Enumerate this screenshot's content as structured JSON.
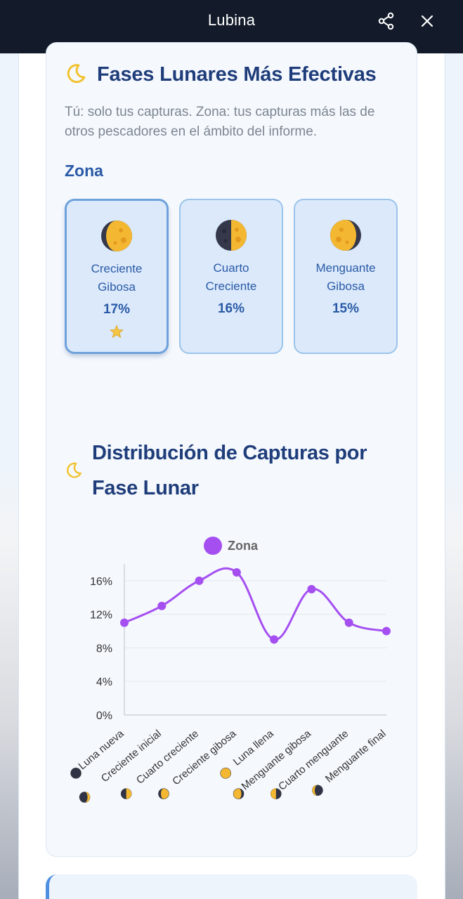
{
  "app": {
    "title": "Lubina"
  },
  "section_phases": {
    "title": "Fases Lunares Más Efectivas",
    "description": "Tú: solo tus capturas. Zona: tus capturas más las de otros pescadores en el ámbito del informe.",
    "scope_title": "Zona",
    "cards": [
      {
        "name": "Creciente Gibosa",
        "percent": "17%",
        "best": true,
        "moon": "waxing-gibbous"
      },
      {
        "name": "Cuarto Creciente",
        "percent": "16%",
        "best": false,
        "moon": "first-quarter"
      },
      {
        "name": "Menguante Gibosa",
        "percent": "15%",
        "best": false,
        "moon": "waning-gibbous"
      }
    ]
  },
  "section_chart": {
    "title": "Distribución de Capturas por Fase Lunar"
  },
  "colors": {
    "series": "#a54ff0",
    "heading": "#1f3d7a",
    "accent": "#2a5aa6"
  },
  "chart_data": {
    "type": "line",
    "categories": [
      "Luna nueva",
      "Creciente inicial",
      "Cuarto creciente",
      "Creciente gibosa",
      "Luna llena",
      "Menguante gibosa",
      "Cuarto menguante",
      "Menguante final"
    ],
    "category_icons": [
      "new-moon",
      "waxing-crescent",
      "first-quarter",
      "waxing-gibbous",
      "full-moon",
      "waning-gibbous",
      "last-quarter",
      "waning-crescent"
    ],
    "series": [
      {
        "name": "Zona",
        "values": [
          11,
          13,
          16,
          17,
          9,
          15,
          11,
          10
        ]
      }
    ],
    "yticks": [
      "0%",
      "4%",
      "8%",
      "12%",
      "16%"
    ],
    "ylim": [
      0,
      18
    ],
    "grid": true,
    "legend": "top-center",
    "smooth": true
  }
}
